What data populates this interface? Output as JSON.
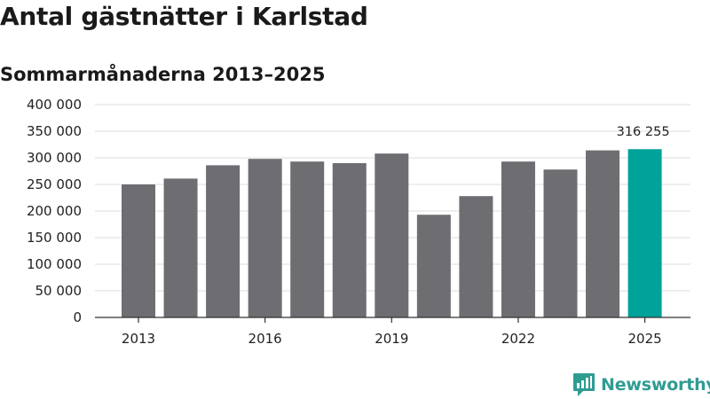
{
  "header": {
    "title": "Antal gästnätter i Karlstad",
    "subtitle": "Sommarmånaderna 2013–2025"
  },
  "brand": {
    "name": "Newsworthy",
    "logo_icon": "bar-chart-speech-bubble-icon",
    "color": "#2f9c92"
  },
  "colors": {
    "bar_default": "#6e6d72",
    "bar_highlight": "#00a29a",
    "grid": "#dddddd",
    "axis": "#333333"
  },
  "chart_data": {
    "type": "bar",
    "title": "Antal gästnätter i Karlstad",
    "subtitle": "Sommarmånaderna 2013–2025",
    "xlabel": "",
    "ylabel": "",
    "categories": [
      "2013",
      "2014",
      "2015",
      "2016",
      "2017",
      "2018",
      "2019",
      "2020",
      "2021",
      "2022",
      "2023",
      "2024",
      "2025"
    ],
    "values": [
      250000,
      261000,
      286000,
      298000,
      293000,
      290000,
      308000,
      193000,
      228000,
      293000,
      278000,
      314000,
      316255
    ],
    "highlight_index": 12,
    "highlight_label": "316 255",
    "x_tick_labels": [
      "2013",
      "2016",
      "2019",
      "2022",
      "2025"
    ],
    "y_ticks": [
      0,
      50000,
      100000,
      150000,
      200000,
      250000,
      300000,
      350000,
      400000
    ],
    "y_tick_labels": [
      "0",
      "50 000",
      "100 000",
      "150 000",
      "200 000",
      "250 000",
      "300 000",
      "350 000",
      "400 000"
    ],
    "ylim": [
      0,
      400000
    ],
    "grid": true,
    "legend": "none"
  }
}
